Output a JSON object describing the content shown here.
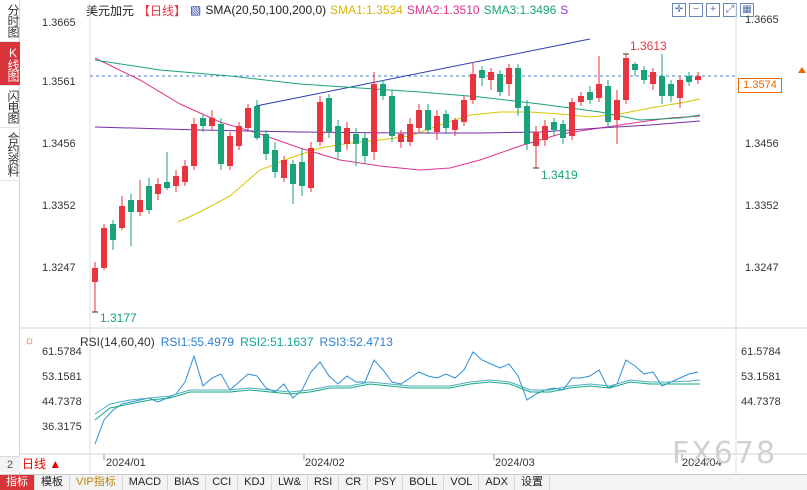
{
  "sidebar": {
    "tabs": [
      {
        "label": "分时图",
        "active": false
      },
      {
        "label": "K线图",
        "active": true
      },
      {
        "label": "闪电图",
        "active": false
      },
      {
        "label": "合约资料",
        "active": false
      }
    ],
    "bottom_number": "2"
  },
  "header": {
    "symbol": "美元加元",
    "period_tag": "【日线】",
    "sma_label": "SMA(20,50,100,200,0)",
    "sma1": "SMA1:1.3534",
    "sma2": "SMA2:1.3510",
    "sma3": "SMA3:1.3496",
    "s_marker": "S"
  },
  "header_icons": [
    "crosshair-icon",
    "minus-icon",
    "plus-icon",
    "expand-icon",
    "grid-icon"
  ],
  "price_axis": {
    "left_labels": [
      "1.3665",
      "1.3561",
      "1.3456",
      "1.3352",
      "1.3247"
    ],
    "right_labels": [
      "1.3665",
      "1.3561",
      "1.3456",
      "1.3352",
      "1.3247"
    ],
    "current_price": "1.3574",
    "high_label": "1.3613",
    "low_label": "1.3177",
    "mid_low_label": "1.3419"
  },
  "rsi": {
    "title": "RSI(14,60,40)",
    "rsi1": "RSI1:55.4979",
    "rsi2": "RSI2:51.1637",
    "rsi3": "RSI3:52.4713",
    "left_labels": [
      "61.5784",
      "53.1581",
      "44.7378",
      "36.3175"
    ],
    "right_labels": [
      "61.5784",
      "53.1581",
      "44.7378"
    ]
  },
  "period_selector": "日线",
  "dates": [
    "2024/01",
    "2024/02",
    "2024/03",
    "2024/04"
  ],
  "toolbar": [
    {
      "label": "指标",
      "active": true
    },
    {
      "label": "模板",
      "active": false
    },
    {
      "label": "VIP指标",
      "active": false,
      "vip": true
    },
    {
      "label": "MACD",
      "active": false
    },
    {
      "label": "BIAS",
      "active": false
    },
    {
      "label": "CCI",
      "active": false
    },
    {
      "label": "KDJ",
      "active": false
    },
    {
      "label": "LW&",
      "active": false
    },
    {
      "label": "RSI",
      "active": false
    },
    {
      "label": "CR",
      "active": false
    },
    {
      "label": "PSY",
      "active": false
    },
    {
      "label": "BOLL",
      "active": false
    },
    {
      "label": "VOL",
      "active": false
    },
    {
      "label": "ADX",
      "active": false
    },
    {
      "label": "设置",
      "active": false
    }
  ],
  "watermark": "FX678",
  "colors": {
    "up": "#e8343f",
    "down": "#1aa37a",
    "sma1": "#d8c400",
    "sma2": "#e0338e",
    "sma3": "#1aa37a",
    "sma4": "#7a2aa8",
    "trendline": "#2c3ea8"
  }
}
